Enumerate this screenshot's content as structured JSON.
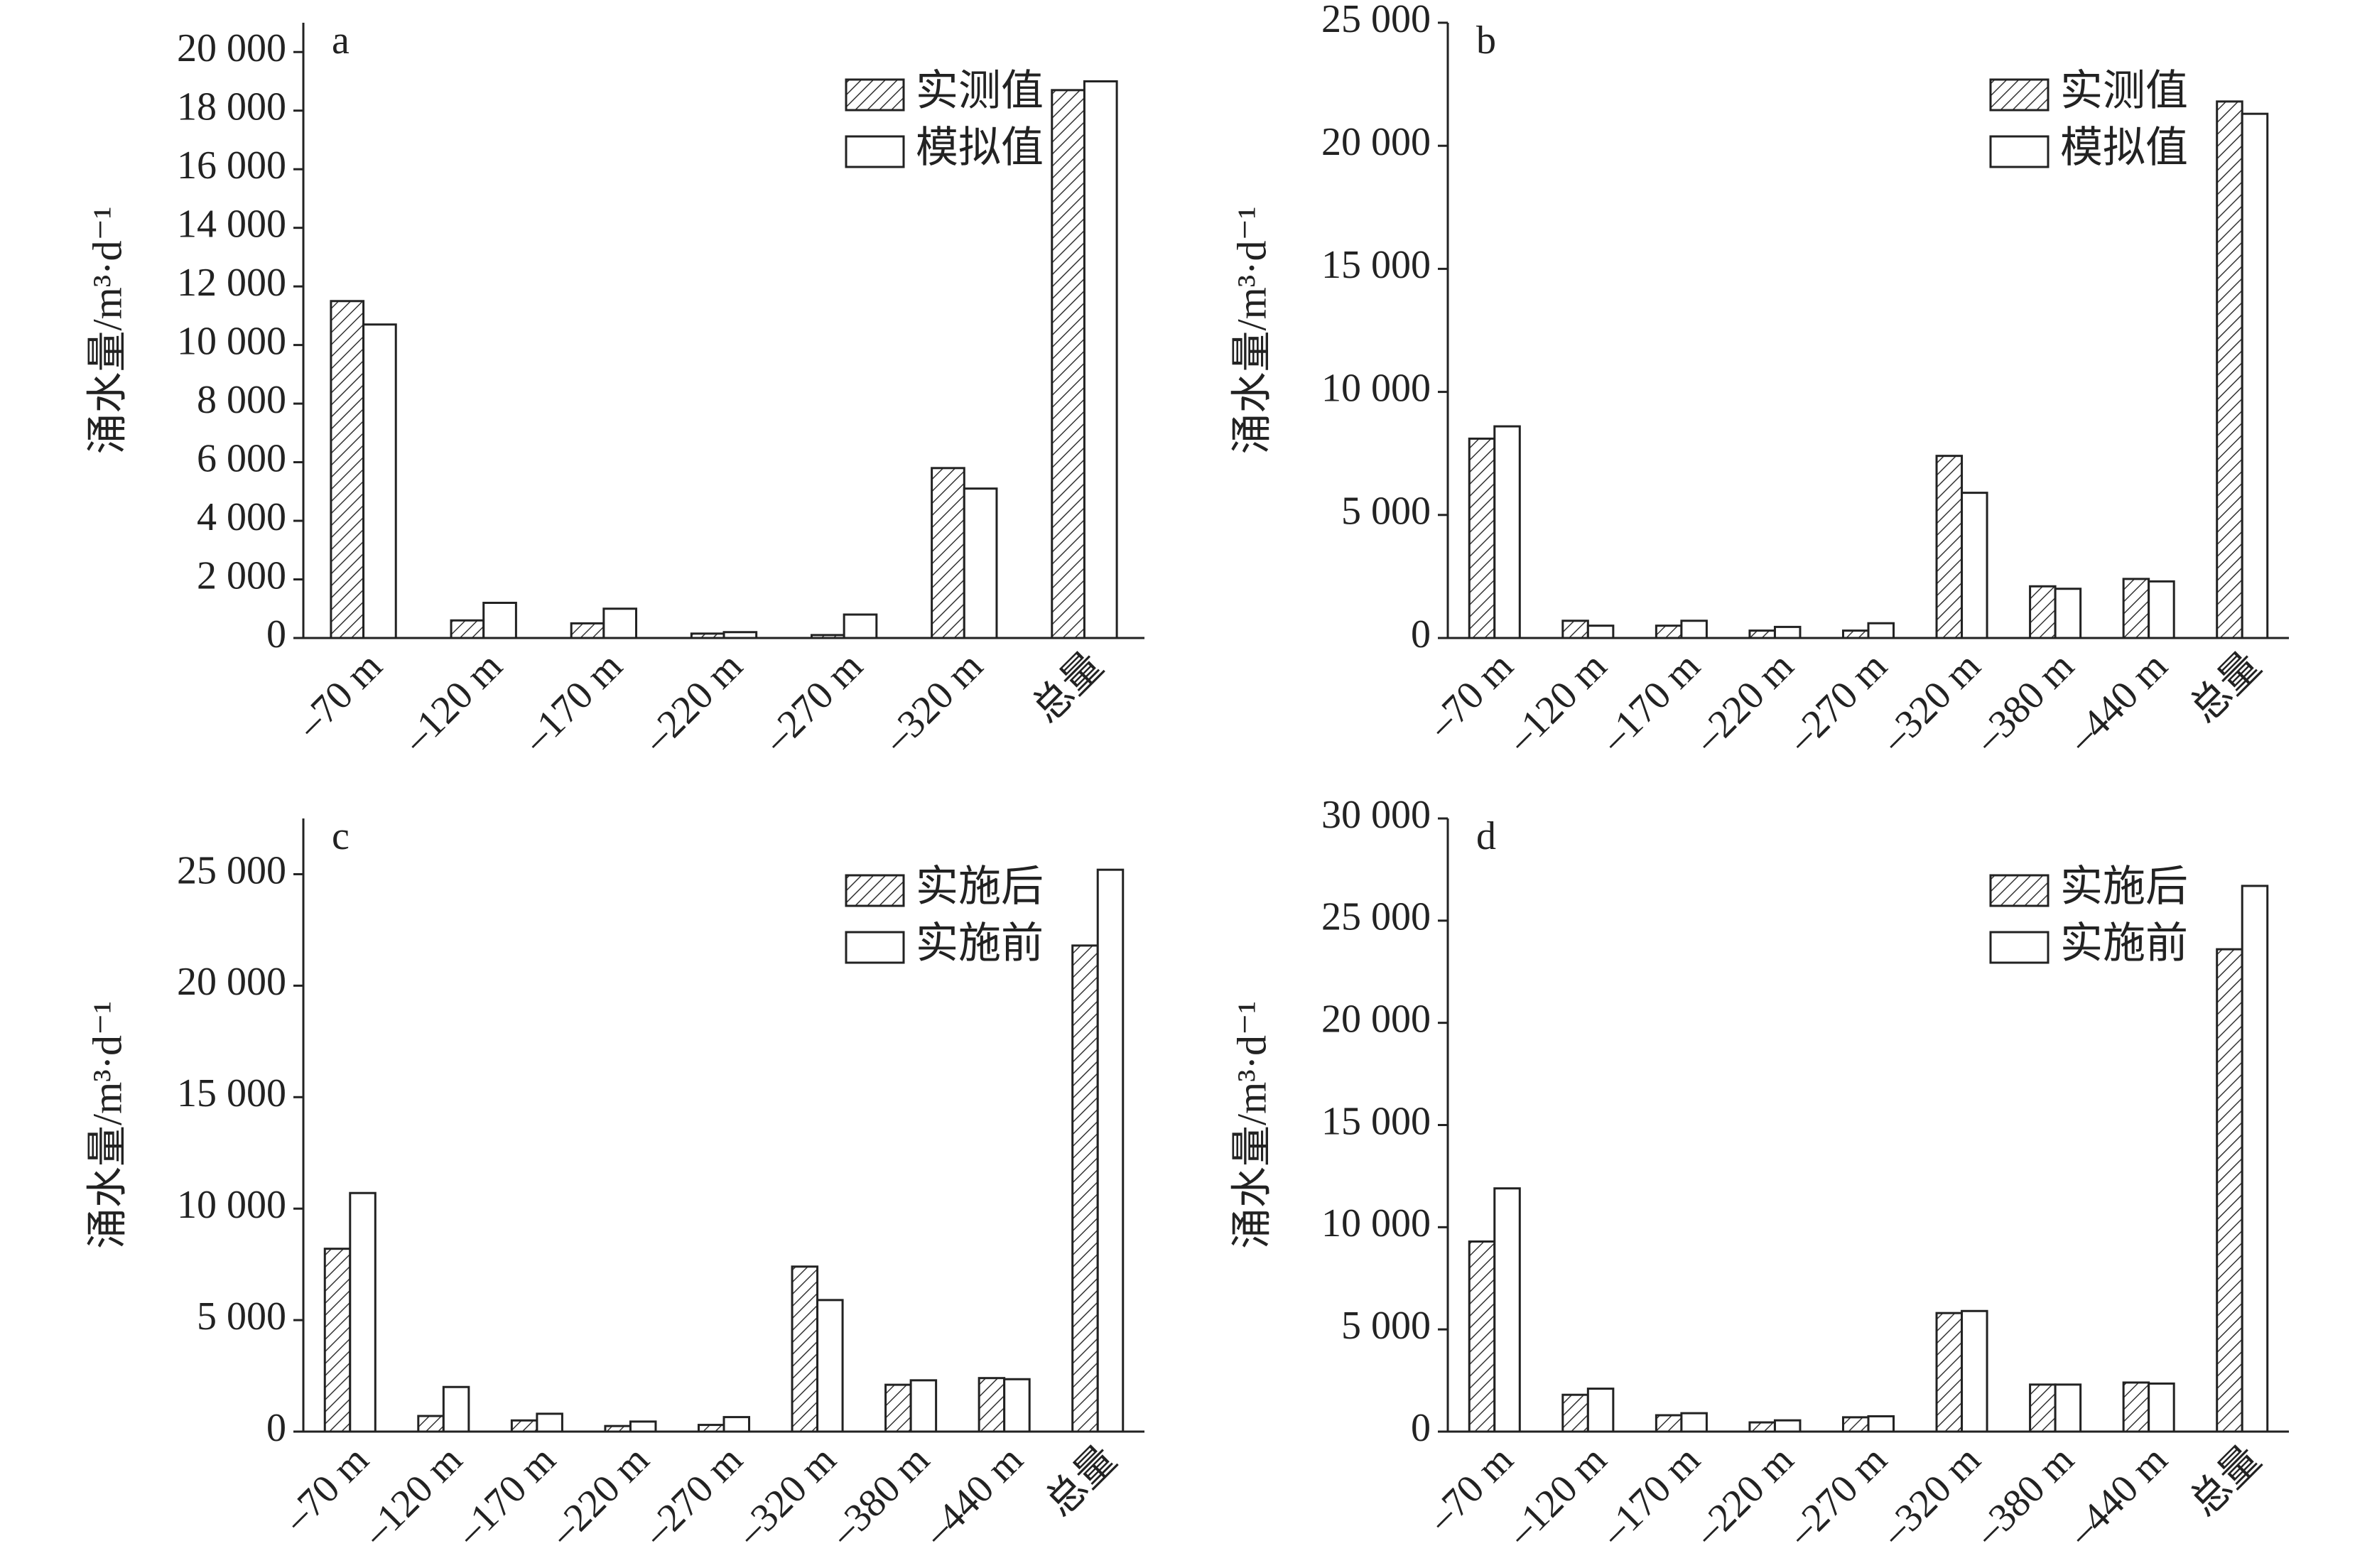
{
  "chart_data": [
    {
      "type": "bar",
      "label": "a",
      "y_label": "涌水量/m³·d⁻¹",
      "categories": [
        "–70 m",
        "–120 m",
        "–170 m",
        "–220 m",
        "–270 m",
        "–320 m",
        "总量"
      ],
      "series": [
        {
          "name": "实测值",
          "color": "#333333",
          "hatch": true,
          "values": [
            11500,
            600,
            500,
            150,
            100,
            5800,
            18700
          ]
        },
        {
          "name": "模拟值",
          "color": "#ffffff",
          "hatch": false,
          "values": [
            10700,
            1200,
            1000,
            200,
            800,
            5100,
            19000
          ]
        }
      ],
      "ylim": [
        0,
        21000
      ],
      "yticks": [
        0,
        {
          "value": 2000,
          "label": "2 000"
        },
        {
          "value": 4000,
          "label": "4 000"
        },
        {
          "value": 6000,
          "label": "6 000"
        },
        {
          "value": 8000,
          "label": "8 000"
        },
        {
          "value": 10000,
          "label": "10 000"
        },
        {
          "value": 12000,
          "label": "12 000"
        },
        {
          "value": 14000,
          "label": "14 000"
        },
        {
          "value": 16000,
          "label": "16 000"
        },
        {
          "value": 18000,
          "label": "18 000"
        },
        {
          "value": 20000,
          "label": "20 000"
        }
      ]
    },
    {
      "type": "bar",
      "label": "b",
      "y_label": "涌水量/m³·d⁻¹",
      "categories": [
        "–70 m",
        "–120 m",
        "–170 m",
        "–220 m",
        "–270 m",
        "–320 m",
        "–380 m",
        "–440 m",
        "总量"
      ],
      "series": [
        {
          "name": "实测值",
          "color": "#333333",
          "hatch": true,
          "values": [
            8100,
            700,
            500,
            300,
            300,
            7400,
            2100,
            2400,
            21800
          ]
        },
        {
          "name": "模拟值",
          "color": "#ffffff",
          "hatch": false,
          "values": [
            8600,
            500,
            700,
            450,
            600,
            5900,
            2000,
            2300,
            21300
          ]
        }
      ],
      "ylim": [
        0,
        25000
      ],
      "yticks": [
        0,
        {
          "value": 5000,
          "label": "5 000"
        },
        {
          "value": 10000,
          "label": "10 000"
        },
        {
          "value": 15000,
          "label": "15 000"
        },
        {
          "value": 20000,
          "label": "20 000"
        },
        {
          "value": 25000,
          "label": "25 000"
        }
      ]
    },
    {
      "type": "bar",
      "label": "c",
      "y_label": "涌水量/m³·d⁻¹",
      "categories": [
        "–70 m",
        "–120 m",
        "–170 m",
        "–220 m",
        "–270 m",
        "–320 m",
        "–380 m",
        "–440 m",
        "总量"
      ],
      "series": [
        {
          "name": "实施后",
          "color": "#333333",
          "hatch": true,
          "values": [
            8200,
            700,
            500,
            250,
            300,
            7400,
            2100,
            2400,
            21800
          ]
        },
        {
          "name": "实施前",
          "color": "#ffffff",
          "hatch": false,
          "values": [
            10700,
            2000,
            800,
            450,
            650,
            5900,
            2300,
            2350,
            25200
          ]
        }
      ],
      "ylim": [
        0,
        27500
      ],
      "yticks": [
        0,
        {
          "value": 5000,
          "label": "5 000"
        },
        {
          "value": 10000,
          "label": "10 000"
        },
        {
          "value": 15000,
          "label": "15 000"
        },
        {
          "value": 20000,
          "label": "20 000"
        },
        {
          "value": 25000,
          "label": "25 000"
        }
      ]
    },
    {
      "type": "bar",
      "label": "d",
      "y_label": "涌水量/m³·d⁻¹",
      "categories": [
        "–70 m",
        "–120 m",
        "–170 m",
        "–220 m",
        "–270 m",
        "–320 m",
        "–380 m",
        "–440 m",
        "总量"
      ],
      "series": [
        {
          "name": "实施后",
          "color": "#333333",
          "hatch": true,
          "values": [
            9300,
            1800,
            800,
            450,
            700,
            5800,
            2300,
            2400,
            23600
          ]
        },
        {
          "name": "实施前",
          "color": "#ffffff",
          "hatch": false,
          "values": [
            11900,
            2100,
            900,
            550,
            750,
            5900,
            2300,
            2350,
            26700
          ]
        }
      ],
      "ylim": [
        0,
        30000
      ],
      "yticks": [
        0,
        {
          "value": 5000,
          "label": "5 000"
        },
        {
          "value": 10000,
          "label": "10 000"
        },
        {
          "value": 15000,
          "label": "15 000"
        },
        {
          "value": 20000,
          "label": "20 000"
        },
        {
          "value": 25000,
          "label": "25 000"
        },
        {
          "value": 30000,
          "label": "30 000"
        }
      ]
    }
  ]
}
